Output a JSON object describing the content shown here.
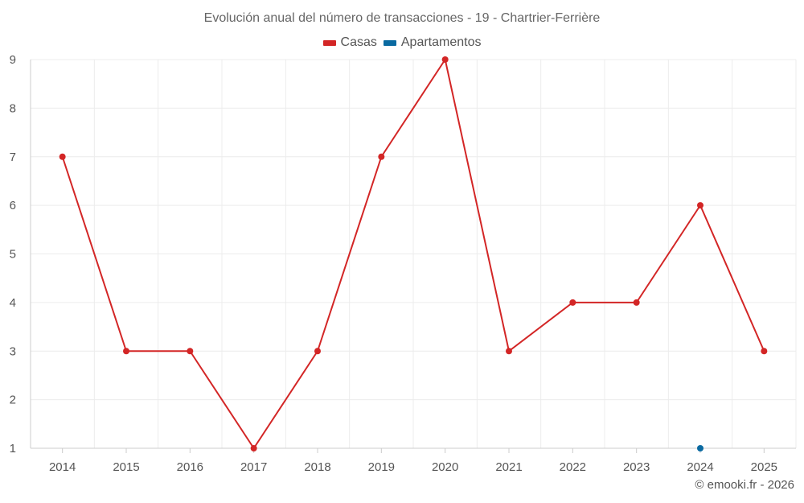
{
  "chart_data": {
    "type": "line",
    "title": "Evolución anual del número de transacciones - 19 - Chartrier-Ferrière",
    "categories": [
      "2014",
      "2015",
      "2016",
      "2017",
      "2018",
      "2019",
      "2020",
      "2021",
      "2022",
      "2023",
      "2024",
      "2025"
    ],
    "ylim": [
      1,
      9
    ],
    "yticks": [
      "1",
      "2",
      "3",
      "4",
      "5",
      "6",
      "7",
      "8",
      "9"
    ],
    "grid": true,
    "legend_position": "top-center",
    "series": [
      {
        "name": "Casas",
        "color": "#d32626",
        "values": [
          7,
          3,
          3,
          1,
          3,
          7,
          9,
          3,
          4,
          4,
          6,
          3
        ]
      },
      {
        "name": "Apartamentos",
        "color": "#0a6aa1",
        "values": [
          null,
          null,
          null,
          null,
          null,
          null,
          null,
          null,
          null,
          null,
          1,
          null
        ]
      }
    ],
    "credit": "© emooki.fr - 2026"
  }
}
